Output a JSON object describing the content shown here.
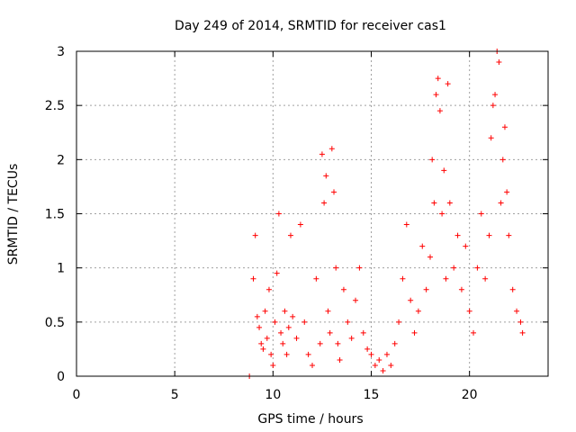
{
  "chart_data": {
    "type": "scatter",
    "title": "Day 249 of 2014, SRMTID for receiver cas1",
    "xlabel": "GPS time / hours",
    "ylabel": "SRMTID / TECUs",
    "xlim": [
      0,
      24
    ],
    "ylim": [
      0,
      3
    ],
    "xticks": [
      0,
      5,
      10,
      15,
      20
    ],
    "yticks": [
      0,
      0.5,
      1,
      1.5,
      2,
      2.5,
      3
    ],
    "ytick_labels": [
      "0",
      "0.5",
      "1",
      "1.5",
      "2",
      "2.5",
      "3"
    ],
    "grid": true,
    "marker": "+",
    "series": [
      {
        "name": "SRMTID",
        "color": "#ff0000",
        "x": [
          8.8,
          9.0,
          9.1,
          9.2,
          9.3,
          9.4,
          9.5,
          9.6,
          9.7,
          9.8,
          9.9,
          10.0,
          10.1,
          10.2,
          10.3,
          10.4,
          10.5,
          10.6,
          10.7,
          10.8,
          10.9,
          11.0,
          11.2,
          11.4,
          11.6,
          11.8,
          12.0,
          12.2,
          12.4,
          12.5,
          12.6,
          12.7,
          12.8,
          12.9,
          13.0,
          13.1,
          13.2,
          13.3,
          13.4,
          13.6,
          13.8,
          14.0,
          14.2,
          14.4,
          14.6,
          14.8,
          15.0,
          15.2,
          15.4,
          15.6,
          15.8,
          16.0,
          16.2,
          16.4,
          16.6,
          16.8,
          17.0,
          17.2,
          17.4,
          17.6,
          17.8,
          18.0,
          18.1,
          18.2,
          18.3,
          18.4,
          18.5,
          18.6,
          18.7,
          18.8,
          18.9,
          19.0,
          19.2,
          19.4,
          19.6,
          19.8,
          20.0,
          20.2,
          20.4,
          20.6,
          20.8,
          21.0,
          21.1,
          21.2,
          21.3,
          21.4,
          21.5,
          21.6,
          21.7,
          21.8,
          21.9,
          22.0,
          22.2,
          22.4,
          22.6,
          22.7
        ],
        "y": [
          0.0,
          0.9,
          1.3,
          0.55,
          0.45,
          0.3,
          0.25,
          0.6,
          0.35,
          0.8,
          0.2,
          0.1,
          0.5,
          0.95,
          1.5,
          0.4,
          0.3,
          0.6,
          0.2,
          0.45,
          1.3,
          0.55,
          0.35,
          1.4,
          0.5,
          0.2,
          0.1,
          0.9,
          0.3,
          2.05,
          1.6,
          1.85,
          0.6,
          0.4,
          2.1,
          1.7,
          1.0,
          0.3,
          0.15,
          0.8,
          0.5,
          0.35,
          0.7,
          1.0,
          0.4,
          0.25,
          0.2,
          0.1,
          0.15,
          0.05,
          0.2,
          0.1,
          0.3,
          0.5,
          0.9,
          1.4,
          0.7,
          0.4,
          0.6,
          1.2,
          0.8,
          1.1,
          2.0,
          1.6,
          2.6,
          2.75,
          2.45,
          1.5,
          1.9,
          0.9,
          2.7,
          1.6,
          1.0,
          1.3,
          0.8,
          1.2,
          0.6,
          0.4,
          1.0,
          1.5,
          0.9,
          1.3,
          2.2,
          2.5,
          2.6,
          3.0,
          2.9,
          1.6,
          2.0,
          2.3,
          1.7,
          1.3,
          0.8,
          0.6,
          0.5,
          0.4
        ]
      }
    ]
  }
}
